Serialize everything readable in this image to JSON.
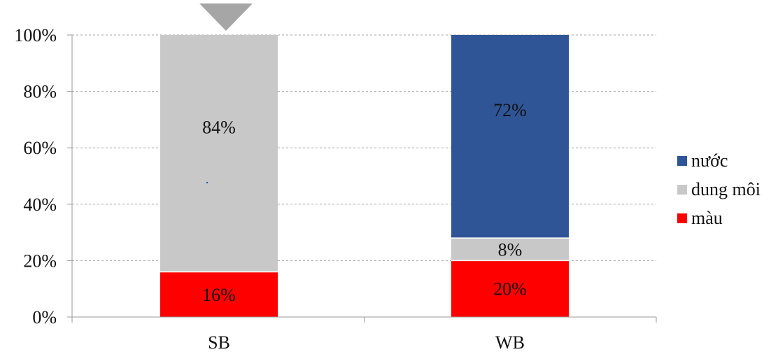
{
  "chart_data": {
    "type": "bar",
    "stacked": true,
    "percent_stacked": true,
    "categories": [
      "SB",
      "WB"
    ],
    "series": [
      {
        "name": "màu",
        "values": [
          16,
          20
        ],
        "color": "#ff0000",
        "labels": [
          "16%",
          "20%"
        ]
      },
      {
        "name": "dung môi",
        "values": [
          84,
          8
        ],
        "color": "#c8c8c8",
        "labels": [
          "84%",
          "8%"
        ]
      },
      {
        "name": "nước",
        "values": [
          0,
          72
        ],
        "color": "#2f5597",
        "labels": [
          "",
          "72%"
        ]
      }
    ],
    "legend_order": [
      "nước",
      "dung môi",
      "màu"
    ],
    "legend_position": "right",
    "ylim": [
      0,
      100
    ],
    "yticks": [
      0,
      20,
      40,
      60,
      80,
      100
    ],
    "ytick_labels": [
      "0%",
      "20%",
      "40%",
      "60%",
      "80%",
      "100%"
    ],
    "grid": "horizontal-dashed",
    "colors": {
      "axis": "#9a9a9a",
      "grid": "#a6a6a6",
      "marker": "#a6a6a6",
      "text": "#111111"
    },
    "annotations": [
      {
        "type": "down-triangle-marker",
        "category": "SB"
      }
    ]
  }
}
